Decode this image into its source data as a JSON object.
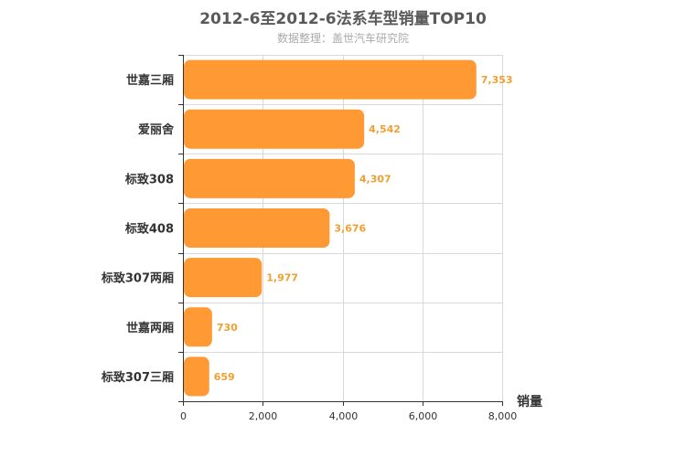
{
  "chart_data": {
    "type": "bar",
    "orientation": "horizontal",
    "title": "2012-6至2012-6法系车型销量TOP10",
    "subtitle": "数据整理：盖世汽车研究院",
    "categories": [
      "世嘉三厢",
      "爱丽舍",
      "标致308",
      "标致408",
      "标致307两厢",
      "世嘉两厢",
      "标致307三厢"
    ],
    "values": [
      7353,
      4542,
      4307,
      3676,
      1977,
      730,
      659
    ],
    "value_labels": [
      "7,353",
      "4,542",
      "4,307",
      "3,676",
      "1,977",
      "730",
      "659"
    ],
    "xlabel": "销量",
    "ylabel": "",
    "xlim": [
      0,
      8000
    ],
    "ticks": [
      0,
      2000,
      4000,
      6000,
      8000
    ],
    "tick_labels": [
      "0",
      "2,000",
      "4,000",
      "6,000",
      "8,000"
    ],
    "grid": true,
    "bar_color": "#ff9933",
    "label_color": "#f0a030"
  }
}
